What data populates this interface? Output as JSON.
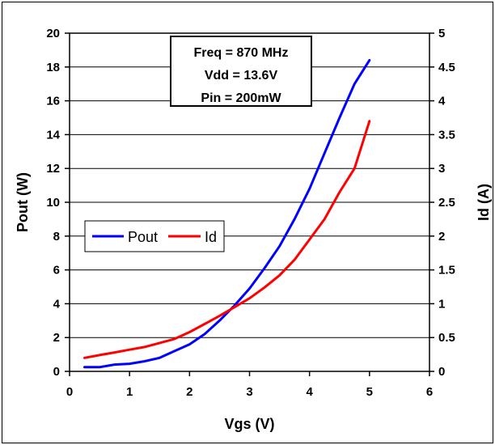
{
  "chart_data": {
    "type": "line",
    "title": "",
    "xlabel": "Vgs (V)",
    "ylabel_left": "Pout (W)",
    "ylabel_right": "Id (A)",
    "xlim": [
      0,
      6
    ],
    "ylim_left": [
      0,
      20
    ],
    "ylim_right": [
      0,
      5
    ],
    "x_ticks": [
      "0",
      "1",
      "2",
      "3",
      "4",
      "5",
      "6"
    ],
    "y_left_ticks": [
      "0",
      "2",
      "4",
      "6",
      "8",
      "10",
      "12",
      "14",
      "16",
      "18",
      "20"
    ],
    "y_right_ticks": [
      "0",
      "0.5",
      "1",
      "1.5",
      "2",
      "2.5",
      "3",
      "3.5",
      "4",
      "4.5",
      "5"
    ],
    "grid": "horizontal",
    "legend_position": "middle-left",
    "annotation": [
      "Freq = 870 MHz",
      "Vdd = 13.6V",
      "Pin = 200mW"
    ],
    "series": [
      {
        "name": "Pout",
        "axis": "left",
        "color": "#0000ff",
        "x": [
          0.25,
          0.5,
          0.75,
          1.0,
          1.25,
          1.5,
          1.75,
          2.0,
          2.25,
          2.5,
          2.75,
          3.0,
          3.25,
          3.5,
          3.75,
          4.0,
          4.25,
          4.5,
          4.75,
          5.0
        ],
        "y": [
          0.25,
          0.25,
          0.4,
          0.45,
          0.6,
          0.8,
          1.2,
          1.6,
          2.2,
          3.0,
          3.9,
          4.9,
          6.1,
          7.4,
          9.0,
          10.8,
          12.9,
          15.0,
          17.0,
          18.4
        ]
      },
      {
        "name": "Id",
        "axis": "right",
        "color": "#ff0000",
        "x": [
          0.25,
          0.5,
          0.75,
          1.0,
          1.25,
          1.5,
          1.75,
          2.0,
          2.25,
          2.5,
          2.75,
          3.0,
          3.25,
          3.5,
          3.75,
          4.0,
          4.25,
          4.5,
          4.75,
          5.0
        ],
        "y": [
          0.2,
          0.24,
          0.28,
          0.32,
          0.36,
          0.42,
          0.48,
          0.58,
          0.7,
          0.82,
          0.95,
          1.08,
          1.24,
          1.42,
          1.65,
          1.95,
          2.25,
          2.65,
          3.0,
          3.7
        ]
      }
    ]
  }
}
